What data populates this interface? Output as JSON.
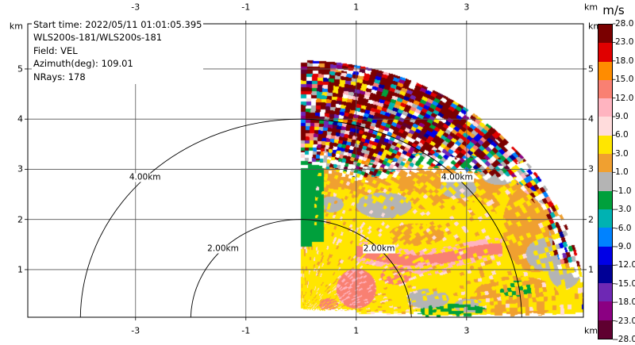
{
  "figure": {
    "background": "#ffffff",
    "info_overlay": {
      "line1": "Start time: 2022/05/11 01:01:05.395",
      "line2": "WLS200s-181/WLS200s-181",
      "line3": "Field: VEL",
      "line4": "Azimuth(deg): 109.01",
      "line5": "NRays: 178"
    }
  },
  "axes": {
    "unit_label": "km",
    "x_tick_labels": [
      "-3",
      "-1",
      "1",
      "3"
    ],
    "x_tick_values": [
      -3,
      -1,
      1,
      3
    ],
    "y_tick_labels": [
      "5",
      "4",
      "3",
      "2",
      "1"
    ],
    "y_tick_values": [
      5,
      4,
      3,
      2,
      1
    ],
    "grid_color": "#555555"
  },
  "range_rings": [
    {
      "radius_km": 2,
      "label": "2.00km"
    },
    {
      "radius_km": 4,
      "label": "4.00km"
    }
  ],
  "colorbar": {
    "title": "m/s",
    "tick_labels": [
      "28.0",
      "23.0",
      "18.0",
      "15.0",
      "12.0",
      "9.0",
      "6.0",
      "3.0",
      "1.0",
      "-1.0",
      "-3.0",
      "-6.0",
      "-9.0",
      "-12.0",
      "-15.0",
      "-18.0",
      "-23.0",
      "-28.0"
    ]
  },
  "chart_data": {
    "type": "heatmap",
    "subtype": "doppler-lidar-rhi-sector-scan",
    "field": "VEL",
    "units": "m/s",
    "instrument": "WLS200s-181/WLS200s-181",
    "start_time": "2022/05/11 01:01:05.395",
    "azimuth_deg": 109.01,
    "nrays": 178,
    "x_axis": {
      "unit": "km",
      "ticks": [
        -3,
        -1,
        1,
        3
      ],
      "range": [
        -4.95,
        5.12
      ]
    },
    "y_axis": {
      "unit": "km",
      "ticks": [
        1,
        2,
        3,
        4,
        5
      ],
      "range": [
        0.05,
        5.9
      ]
    },
    "range_rings_km": [
      2.0,
      4.0
    ],
    "grid": true,
    "legend_position": "right-colorbar",
    "sector": {
      "elevation_deg_min": 1.5,
      "elevation_deg_max": 90,
      "range_km_min": 0.22,
      "range_km_max": 5.17
    },
    "colormap": {
      "boundaries_mps": [
        28,
        23,
        18,
        15,
        12,
        9,
        6,
        3,
        1,
        -1,
        -3,
        -6,
        -9,
        -12,
        -15,
        -18,
        -23,
        -28
      ],
      "colors": [
        "#7a0000",
        "#e00000",
        "#ff8c00",
        "#f98072",
        "#ffb4c0",
        "#ffdcdc",
        "#ffe600",
        "#f0a030",
        "#b4b4b4",
        "#00a03c",
        "#00b2b2",
        "#0082ff",
        "#0000e6",
        "#000096",
        "#6e28b4",
        "#8b0082",
        "#5f0030"
      ]
    },
    "regions": [
      {
        "name": "coherent-flow",
        "where": "height below ~2.9 km and range below ~4.9 km",
        "values_mps": "mostly +3..+6 (yellow); +1..+3 orange patches near the top of the layer and on the right side; +9..+15 pink/salmon jet streaks near 0.3-1.5 km height between x=0.4 and x=3.6; near-zero gray patches; -1..-3 green band along the vertical 90-deg edge between 1.5 and 3.1 km"
      },
      {
        "name": "noise-speckle",
        "where": "height above ~2.9 km or range beyond ~4.9 km, out to 5.17 km",
        "values_mps": "random speckle spanning the full -28..+28 scale, dominated by dark red, with white gaps near the coherent/noise boundary and the outer arc"
      }
    ]
  }
}
